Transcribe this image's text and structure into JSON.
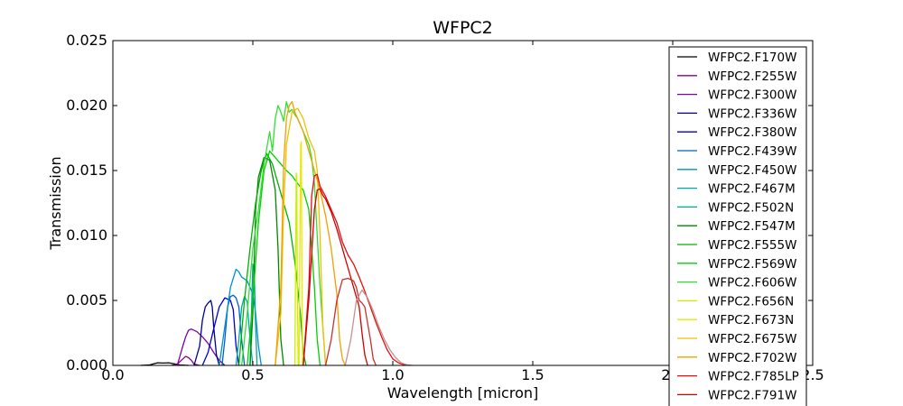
{
  "chart_data": {
    "type": "line",
    "title": "WFPC2",
    "xlabel": "Wavelength [micron]",
    "ylabel": "Transmission",
    "xlim": [
      0.0,
      2.5
    ],
    "ylim": [
      0.0,
      0.025
    ],
    "xticks": [
      0.0,
      0.5,
      1.0,
      1.5,
      2.0,
      2.5
    ],
    "xtick_labels": [
      "0.0",
      "0.5",
      "1.0",
      "1.5",
      "2.0",
      "2.5"
    ],
    "yticks": [
      0.0,
      0.005,
      0.01,
      0.015,
      0.02,
      0.025
    ],
    "ytick_labels": [
      "0.000",
      "0.005",
      "0.010",
      "0.015",
      "0.020",
      "0.025"
    ],
    "grid": false,
    "legend_position": "top-right",
    "series": [
      {
        "name": "WFPC2.F170W",
        "color": "#000000",
        "x": [
          0.1,
          0.13,
          0.15,
          0.16,
          0.18,
          0.2,
          0.22,
          0.24,
          0.27
        ],
        "y": [
          0,
          3e-05,
          0.00015,
          0.0002,
          0.00018,
          0.0002,
          0.00012,
          3e-05,
          0
        ]
      },
      {
        "name": "WFPC2.F255W",
        "color": "#8a008a",
        "x": [
          0.21,
          0.23,
          0.25,
          0.26,
          0.27,
          0.28,
          0.29,
          0.31
        ],
        "y": [
          0,
          0.0001,
          0.0005,
          0.0007,
          0.0006,
          0.0004,
          0.0001,
          0
        ]
      },
      {
        "name": "WFPC2.F300W",
        "color": "#7d00a8",
        "x": [
          0.23,
          0.25,
          0.26,
          0.27,
          0.28,
          0.3,
          0.32,
          0.34,
          0.36,
          0.38,
          0.4
        ],
        "y": [
          0,
          0.0015,
          0.0022,
          0.0027,
          0.0028,
          0.0026,
          0.0022,
          0.0017,
          0.001,
          0.0004,
          0
        ]
      },
      {
        "name": "WFPC2.F336W",
        "color": "#00008f",
        "x": [
          0.29,
          0.31,
          0.32,
          0.33,
          0.34,
          0.35,
          0.355,
          0.36,
          0.37,
          0.38
        ],
        "y": [
          0,
          0.0015,
          0.0035,
          0.0045,
          0.0048,
          0.005,
          0.0045,
          0.003,
          0.0008,
          0
        ]
      },
      {
        "name": "WFPC2.F380W",
        "color": "#0000d0",
        "x": [
          0.32,
          0.34,
          0.36,
          0.38,
          0.4,
          0.42,
          0.43,
          0.44,
          0.45
        ],
        "y": [
          0,
          0.001,
          0.0028,
          0.0045,
          0.0052,
          0.005,
          0.0043,
          0.0015,
          0
        ]
      },
      {
        "name": "WFPC2.F439W",
        "color": "#0060c8",
        "x": [
          0.39,
          0.4,
          0.41,
          0.42,
          0.43,
          0.44,
          0.45,
          0.46,
          0.47
        ],
        "y": [
          0,
          0.002,
          0.0045,
          0.0053,
          0.0054,
          0.0052,
          0.0045,
          0.002,
          0
        ]
      },
      {
        "name": "WFPC2.F450W",
        "color": "#0090d0",
        "x": [
          0.38,
          0.4,
          0.42,
          0.44,
          0.45,
          0.46,
          0.48,
          0.5,
          0.51,
          0.52,
          0.53
        ],
        "y": [
          0,
          0.003,
          0.006,
          0.0074,
          0.0072,
          0.0068,
          0.0065,
          0.0055,
          0.004,
          0.0015,
          0
        ]
      },
      {
        "name": "WFPC2.F467M",
        "color": "#00a8a8",
        "x": [
          0.44,
          0.45,
          0.46,
          0.47,
          0.48,
          0.49,
          0.5
        ],
        "y": [
          0,
          0.002,
          0.0045,
          0.0053,
          0.0049,
          0.002,
          0
        ]
      },
      {
        "name": "WFPC2.F502N",
        "color": "#00a890",
        "x": [
          0.49,
          0.495,
          0.5,
          0.505,
          0.51,
          0.515
        ],
        "y": [
          0,
          0.004,
          0.0078,
          0.0072,
          0.003,
          0
        ]
      },
      {
        "name": "WFPC2.F547M",
        "color": "#008800",
        "x": [
          0.49,
          0.5,
          0.51,
          0.52,
          0.54,
          0.56,
          0.58,
          0.59,
          0.6,
          0.61
        ],
        "y": [
          0,
          0.004,
          0.012,
          0.0145,
          0.016,
          0.0158,
          0.0135,
          0.009,
          0.002,
          0
        ]
      },
      {
        "name": "WFPC2.F555W",
        "color": "#00b000",
        "x": [
          0.45,
          0.47,
          0.49,
          0.51,
          0.53,
          0.55,
          0.57,
          0.59,
          0.61,
          0.63,
          0.65,
          0.67,
          0.68,
          0.69
        ],
        "y": [
          0,
          0.005,
          0.009,
          0.0125,
          0.015,
          0.0163,
          0.0155,
          0.014,
          0.0125,
          0.011,
          0.008,
          0.004,
          0.001,
          0
        ]
      },
      {
        "name": "WFPC2.F569W",
        "color": "#00d000",
        "x": [
          0.48,
          0.5,
          0.52,
          0.54,
          0.56,
          0.58,
          0.6,
          0.62,
          0.64,
          0.66,
          0.68,
          0.7,
          0.72,
          0.73,
          0.74
        ],
        "y": [
          0,
          0.005,
          0.011,
          0.015,
          0.0165,
          0.016,
          0.0155,
          0.015,
          0.0146,
          0.014,
          0.0135,
          0.012,
          0.006,
          0.002,
          0
        ]
      },
      {
        "name": "WFPC2.F606W",
        "color": "#30e030",
        "x": [
          0.46,
          0.48,
          0.5,
          0.52,
          0.54,
          0.56,
          0.57,
          0.58,
          0.59,
          0.6,
          0.61,
          0.62,
          0.63,
          0.64,
          0.65,
          0.66,
          0.68,
          0.7,
          0.71,
          0.72,
          0.74,
          0.76
        ],
        "y": [
          0,
          0.004,
          0.009,
          0.012,
          0.0155,
          0.018,
          0.0165,
          0.019,
          0.02,
          0.0195,
          0.0188,
          0.0203,
          0.0195,
          0.0197,
          0.0193,
          0.019,
          0.018,
          0.017,
          0.016,
          0.014,
          0.006,
          0
        ]
      },
      {
        "name": "WFPC2.F656N",
        "color": "#c8f000",
        "x": [
          0.65,
          0.653,
          0.655,
          0.657,
          0.659,
          0.662
        ],
        "y": [
          0,
          0.008,
          0.0148,
          0.0145,
          0.006,
          0
        ]
      },
      {
        "name": "WFPC2.F673N",
        "color": "#e8e800",
        "x": [
          0.665,
          0.668,
          0.671,
          0.673,
          0.675,
          0.678
        ],
        "y": [
          0,
          0.009,
          0.017,
          0.0172,
          0.008,
          0
        ]
      },
      {
        "name": "WFPC2.F675W",
        "color": "#f0c000",
        "x": [
          0.58,
          0.6,
          0.61,
          0.62,
          0.64,
          0.66,
          0.68,
          0.7,
          0.72,
          0.73,
          0.74,
          0.75,
          0.76
        ],
        "y": [
          0,
          0.004,
          0.012,
          0.017,
          0.0195,
          0.0198,
          0.019,
          0.0175,
          0.0165,
          0.015,
          0.01,
          0.003,
          0
        ]
      },
      {
        "name": "WFPC2.F702W",
        "color": "#f0a000",
        "x": [
          0.58,
          0.6,
          0.61,
          0.62,
          0.63,
          0.64,
          0.65,
          0.66,
          0.68,
          0.7,
          0.72,
          0.74,
          0.76,
          0.78,
          0.8,
          0.81,
          0.82,
          0.83
        ],
        "y": [
          0,
          0.006,
          0.0155,
          0.019,
          0.02,
          0.0203,
          0.0195,
          0.019,
          0.018,
          0.0165,
          0.015,
          0.0135,
          0.0115,
          0.009,
          0.0055,
          0.002,
          0.0005,
          0
        ]
      },
      {
        "name": "WFPC2.F785LP",
        "color": "#e01010",
        "x": [
          0.68,
          0.7,
          0.71,
          0.72,
          0.73,
          0.74,
          0.76,
          0.78,
          0.8,
          0.82,
          0.84,
          0.86,
          0.88,
          0.9,
          0.92,
          0.94,
          0.96,
          0.98,
          1.0,
          1.02,
          1.04,
          1.06
        ],
        "y": [
          0,
          0.006,
          0.013,
          0.0146,
          0.0147,
          0.0138,
          0.013,
          0.012,
          0.011,
          0.0095,
          0.0085,
          0.0078,
          0.0068,
          0.0057,
          0.0045,
          0.0033,
          0.0022,
          0.0012,
          0.0005,
          0.0002,
          5e-05,
          0
        ]
      },
      {
        "name": "WFPC2.F791W",
        "color": "#d00000",
        "x": [
          0.68,
          0.7,
          0.72,
          0.73,
          0.74,
          0.75,
          0.76,
          0.78,
          0.8,
          0.82,
          0.84,
          0.86,
          0.88,
          0.89,
          0.9,
          0.91
        ],
        "y": [
          0,
          0.005,
          0.012,
          0.0135,
          0.0136,
          0.0131,
          0.0128,
          0.0118,
          0.0105,
          0.009,
          0.0075,
          0.006,
          0.0045,
          0.0025,
          0.0008,
          0
        ]
      },
      {
        "name": "",
        "color": "#c83030",
        "x": [
          0.76,
          0.78,
          0.8,
          0.82,
          0.84,
          0.86,
          0.87,
          0.88,
          0.89,
          0.9,
          0.92,
          0.93,
          0.94
        ],
        "y": [
          0,
          0.002,
          0.005,
          0.0066,
          0.0067,
          0.0065,
          0.006,
          0.005,
          0.0048,
          0.0045,
          0.002,
          0.0005,
          0
        ]
      },
      {
        "name": "",
        "color": "#c89090",
        "x": [
          0.83,
          0.85,
          0.87,
          0.89,
          0.91,
          0.93,
          0.95,
          0.97,
          0.99,
          1.01,
          1.03,
          1.05,
          1.07
        ],
        "y": [
          0,
          0.002,
          0.005,
          0.0058,
          0.0052,
          0.0042,
          0.003,
          0.002,
          0.0012,
          0.0006,
          0.0002,
          5e-05,
          0
        ]
      }
    ]
  }
}
